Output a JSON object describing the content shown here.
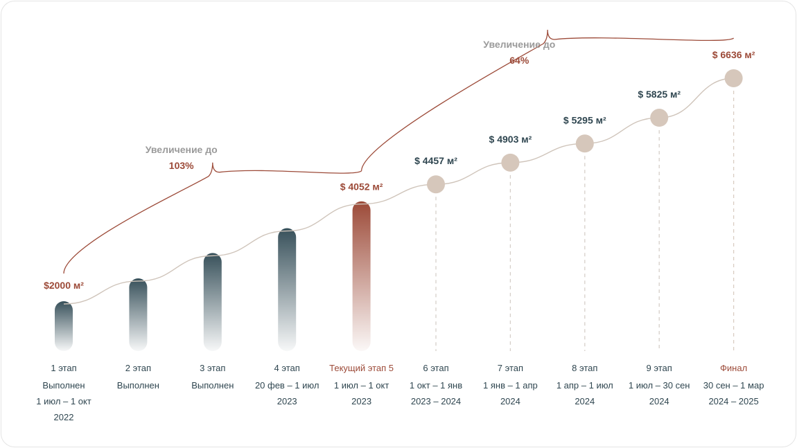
{
  "colors": {
    "dark": "#37505a",
    "accent": "#9c4a38",
    "future": "#d6c7bb",
    "line": "#cfc4ba",
    "brace": "#9c4a38",
    "muted": "#9a9a9a",
    "text": "#2f4650"
  },
  "chart_data": {
    "type": "bar-line",
    "stages": [
      {
        "name": "1 этап",
        "lines": [
          "Выполнен",
          "1 июл – 1 окт",
          "2022"
        ],
        "price": 2000,
        "price_label": "$2000 м²",
        "status": "completed"
      },
      {
        "name": "2 этап",
        "lines": [
          "Выполнен"
        ],
        "price": 2470,
        "price_label": "",
        "status": "completed"
      },
      {
        "name": "3 этап",
        "lines": [
          "Выполнен"
        ],
        "price": 2990,
        "price_label": "",
        "status": "completed"
      },
      {
        "name": "4 этап",
        "lines": [
          "20 фев – 1 июл",
          "2023"
        ],
        "price": 3500,
        "price_label": "",
        "status": "completed"
      },
      {
        "name": "Текущий этап 5",
        "lines": [
          "1 июл – 1 окт",
          "2023"
        ],
        "price": 4052,
        "price_label": "$ 4052 м²",
        "status": "current"
      },
      {
        "name": "6 этап",
        "lines": [
          "1 окт – 1 янв",
          "2023 – 2024"
        ],
        "price": 4457,
        "price_label": "$ 4457 м²",
        "status": "future"
      },
      {
        "name": "7 этап",
        "lines": [
          "1 янв – 1 апр",
          "2024"
        ],
        "price": 4903,
        "price_label": "$ 4903 м²",
        "status": "future"
      },
      {
        "name": "8 этап",
        "lines": [
          "1 апр – 1 июл",
          "2024"
        ],
        "price": 5295,
        "price_label": "$ 5295 м²",
        "status": "future"
      },
      {
        "name": "9 этап",
        "lines": [
          "1 июл – 30 сен",
          "2024"
        ],
        "price": 5825,
        "price_label": "$ 5825 м²",
        "status": "future"
      },
      {
        "name": "Финал",
        "lines": [
          "30 сен – 1 мар",
          "2024 – 2025"
        ],
        "price": 6636,
        "price_label": "$ 6636 м²",
        "status": "final"
      }
    ],
    "braces": [
      {
        "from_stage": 0,
        "to_stage": 4,
        "title": "Увеличение до",
        "value": "103%"
      },
      {
        "from_stage": 4,
        "to_stage": 9,
        "title": "Увеличение до",
        "value": "64%"
      }
    ]
  }
}
